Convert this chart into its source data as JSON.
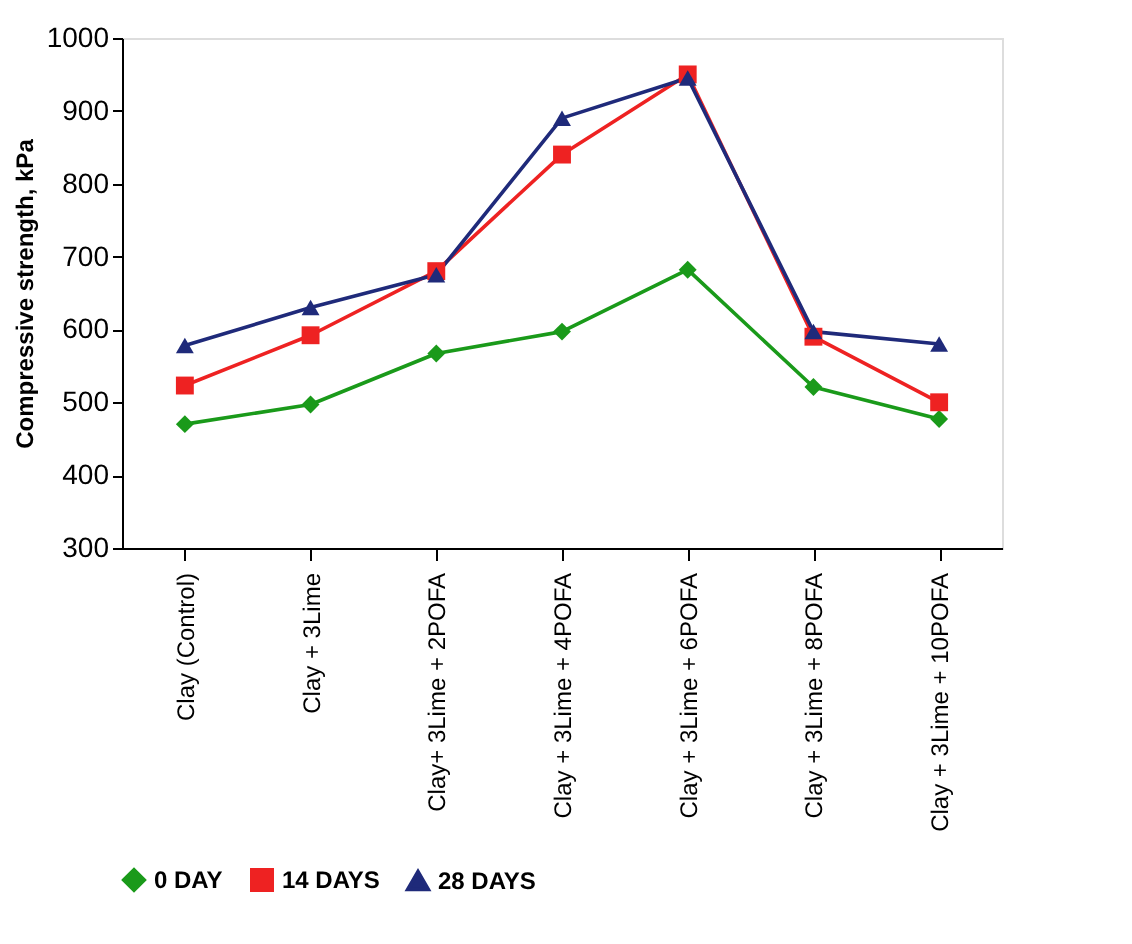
{
  "chart_data": {
    "type": "line",
    "ylabel": "Compressive strength, kPa",
    "categories": [
      "Clay (Control)",
      "Clay + 3Lime",
      "Clay+ 3Lime + 2POFA",
      "Clay + 3Lime + 4POFA",
      "Clay + 3Lime + 6POFA",
      "Clay + 3Lime + 8POFA",
      "Clay + 3Lime + 10POFA"
    ],
    "series": [
      {
        "name": "0 DAY",
        "color": "#1a9a1a",
        "marker": "diamond",
        "values": [
          470,
          497,
          567,
          597,
          682,
          521,
          477
        ]
      },
      {
        "name": "14 DAYS",
        "color": "#ee2222",
        "marker": "square",
        "values": [
          523,
          592,
          680,
          840,
          950,
          590,
          500
        ]
      },
      {
        "name": "28 DAYS",
        "color": "#1f2a7a",
        "marker": "triangle",
        "values": [
          578,
          630,
          675,
          890,
          945,
          597,
          580
        ]
      }
    ],
    "ylim": [
      300,
      1000
    ],
    "yticks": [
      300,
      400,
      500,
      600,
      700,
      800,
      900,
      1000
    ],
    "grid": false,
    "legend": "bottom",
    "line_style": "solid"
  }
}
